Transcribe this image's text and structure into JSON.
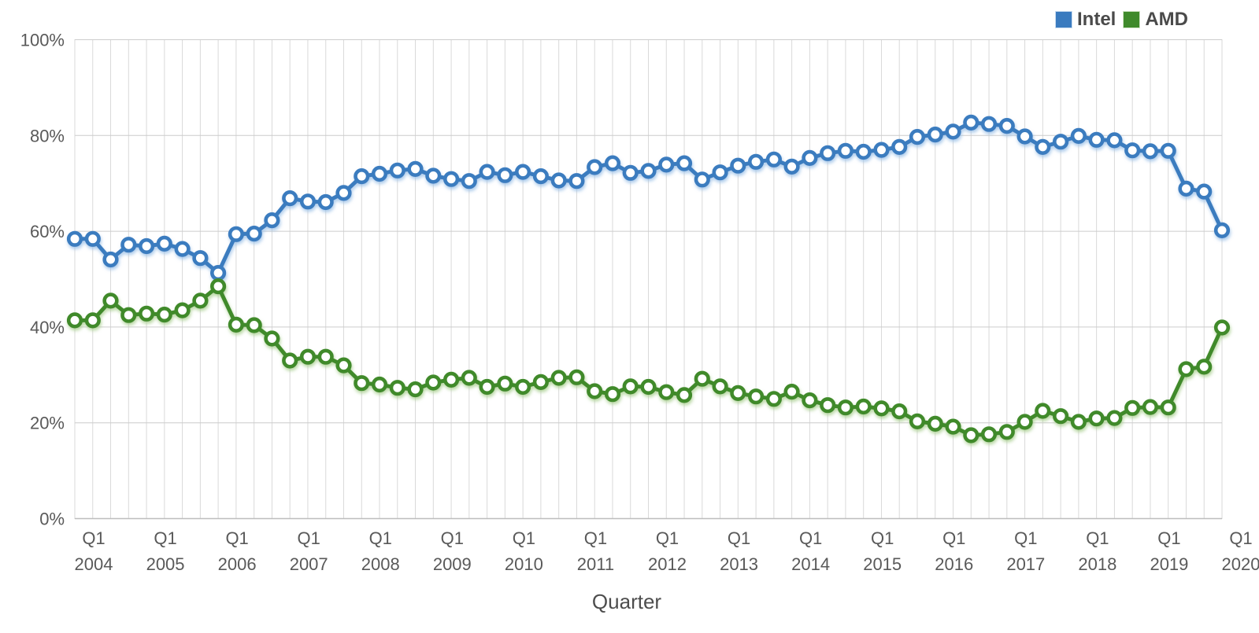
{
  "chart_data": {
    "type": "line",
    "title": "",
    "xlabel": "Quarter",
    "ylabel": "",
    "ylim": [
      0,
      100
    ],
    "grid": true,
    "legend_position": "top-right",
    "y_ticks": [
      {
        "label": "100%",
        "value": 100
      },
      {
        "label": "80%",
        "value": 80
      },
      {
        "label": "60%",
        "value": 60
      },
      {
        "label": "40%",
        "value": 40
      },
      {
        "label": "20%",
        "value": 20
      },
      {
        "label": "0%",
        "value": 0
      }
    ],
    "x_major_ticks": [
      {
        "quarter": "Q1",
        "year": "2004",
        "index": 0
      },
      {
        "quarter": "Q1",
        "year": "2005",
        "index": 4
      },
      {
        "quarter": "Q1",
        "year": "2006",
        "index": 8
      },
      {
        "quarter": "Q1",
        "year": "2007",
        "index": 12
      },
      {
        "quarter": "Q1",
        "year": "2008",
        "index": 16
      },
      {
        "quarter": "Q1",
        "year": "2009",
        "index": 20
      },
      {
        "quarter": "Q1",
        "year": "2010",
        "index": 24
      },
      {
        "quarter": "Q1",
        "year": "2011",
        "index": 28
      },
      {
        "quarter": "Q1",
        "year": "2012",
        "index": 32
      },
      {
        "quarter": "Q1",
        "year": "2013",
        "index": 36
      },
      {
        "quarter": "Q1",
        "year": "2014",
        "index": 40
      },
      {
        "quarter": "Q1",
        "year": "2015",
        "index": 44
      },
      {
        "quarter": "Q1",
        "year": "2016",
        "index": 48
      },
      {
        "quarter": "Q1",
        "year": "2017",
        "index": 52
      },
      {
        "quarter": "Q1",
        "year": "2018",
        "index": 56
      },
      {
        "quarter": "Q1",
        "year": "2019",
        "index": 60
      },
      {
        "quarter": "Q1",
        "year": "2020",
        "index": 64
      }
    ],
    "categories": [
      "Q1 2004",
      "Q2 2004",
      "Q3 2004",
      "Q4 2004",
      "Q1 2005",
      "Q2 2005",
      "Q3 2005",
      "Q4 2005",
      "Q1 2006",
      "Q2 2006",
      "Q3 2006",
      "Q4 2006",
      "Q1 2007",
      "Q2 2007",
      "Q3 2007",
      "Q4 2007",
      "Q1 2008",
      "Q2 2008",
      "Q3 2008",
      "Q4 2008",
      "Q1 2009",
      "Q2 2009",
      "Q3 2009",
      "Q4 2009",
      "Q1 2010",
      "Q2 2010",
      "Q3 2010",
      "Q4 2010",
      "Q1 2011",
      "Q2 2011",
      "Q3 2011",
      "Q4 2011",
      "Q1 2012",
      "Q2 2012",
      "Q3 2012",
      "Q4 2012",
      "Q1 2013",
      "Q2 2013",
      "Q3 2013",
      "Q4 2013",
      "Q1 2014",
      "Q2 2014",
      "Q3 2014",
      "Q4 2014",
      "Q1 2015",
      "Q2 2015",
      "Q3 2015",
      "Q4 2015",
      "Q1 2016",
      "Q2 2016",
      "Q3 2016",
      "Q4 2016",
      "Q1 2017",
      "Q2 2017",
      "Q3 2017",
      "Q4 2017",
      "Q1 2018",
      "Q2 2018",
      "Q3 2018",
      "Q4 2018",
      "Q1 2019",
      "Q2 2019",
      "Q3 2019",
      "Q4 2019",
      "Q1 2020"
    ],
    "series": [
      {
        "name": "Intel",
        "color": "#3a7bbf",
        "shadow_color": "#9fc3e8",
        "swatch_border": "#c9dcf0",
        "values": [
          58.4,
          58.4,
          54.1,
          57.2,
          56.9,
          57.4,
          56.3,
          54.4,
          51.3,
          59.4,
          59.5,
          62.3,
          66.9,
          66.2,
          66.1,
          68.0,
          71.5,
          72.0,
          72.7,
          73.0,
          71.6,
          70.9,
          70.5,
          72.4,
          71.7,
          72.4,
          71.5,
          70.6,
          70.5,
          73.4,
          74.2,
          72.2,
          72.6,
          73.9,
          74.2,
          70.8,
          72.3,
          73.7,
          74.5,
          75.0,
          73.5,
          75.3,
          76.3,
          76.8,
          76.6,
          77.0,
          77.6,
          79.7,
          80.2,
          80.8,
          82.7,
          82.4,
          82.0,
          79.8,
          77.6,
          78.7,
          79.9,
          79.1,
          79.0,
          76.9,
          76.7,
          76.8,
          68.9,
          68.3,
          60.2
        ]
      },
      {
        "name": "AMD",
        "color": "#3f8a2b",
        "shadow_color": "#abd093",
        "swatch_border": "#cfe3c4",
        "values": [
          41.4,
          41.4,
          45.5,
          42.5,
          42.8,
          42.6,
          43.5,
          45.5,
          48.5,
          40.5,
          40.4,
          37.6,
          33.0,
          33.8,
          33.8,
          32.0,
          28.3,
          28.0,
          27.3,
          27.0,
          28.4,
          29.0,
          29.4,
          27.5,
          28.2,
          27.5,
          28.5,
          29.4,
          29.5,
          26.6,
          26.0,
          27.6,
          27.5,
          26.4,
          25.8,
          29.2,
          27.6,
          26.2,
          25.5,
          25.0,
          26.5,
          24.7,
          23.7,
          23.2,
          23.4,
          23.0,
          22.4,
          20.3,
          19.8,
          19.2,
          17.4,
          17.6,
          18.1,
          20.2,
          22.5,
          21.4,
          20.2,
          20.9,
          21.0,
          23.1,
          23.3,
          23.2,
          31.2,
          31.7,
          39.9
        ]
      }
    ]
  },
  "colors": {
    "background": "#ffffff",
    "grid_vertical": "#d9d9d9",
    "grid_horizontal": "#cccccc",
    "axis_line": "#bdbdbd",
    "tick_text": "#595959",
    "legend_text": "#4a4a4a",
    "title_text": "#4d4d4d",
    "marker_fill": "#ffffff"
  }
}
